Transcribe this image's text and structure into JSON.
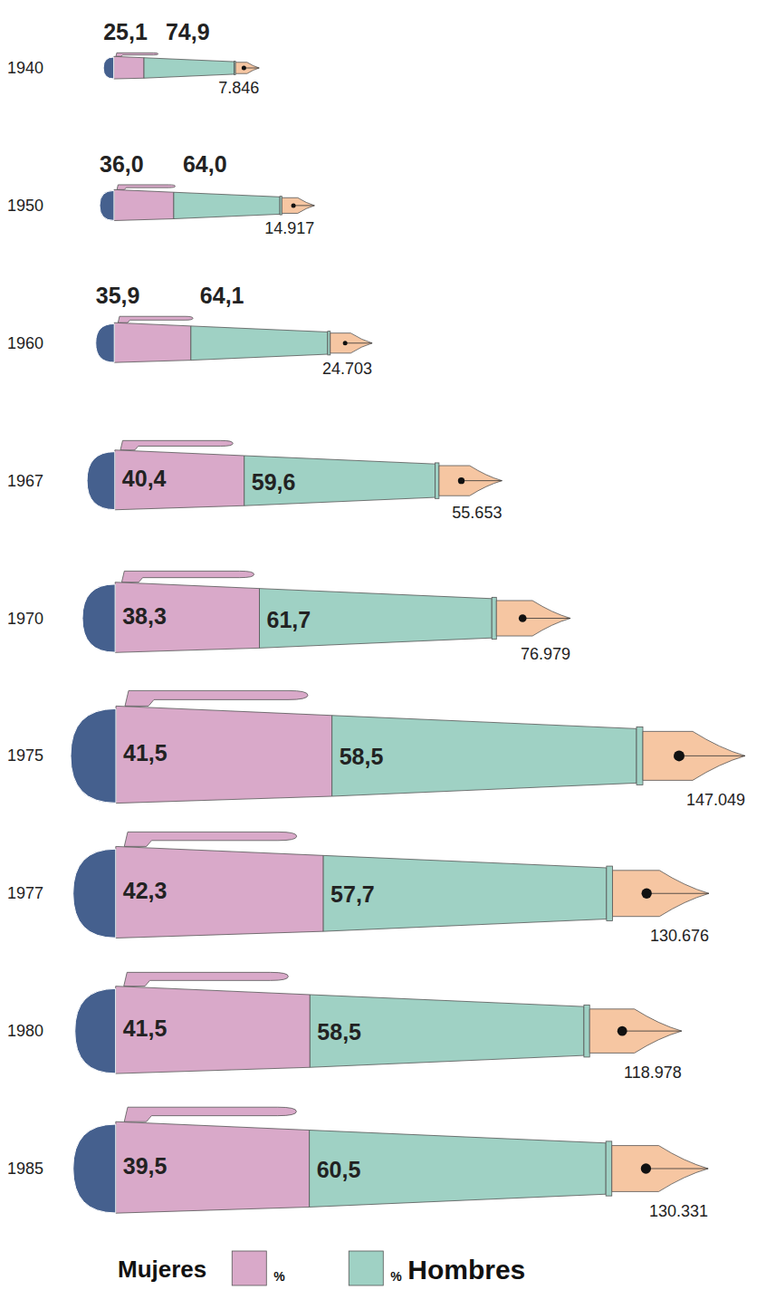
{
  "chart_data": {
    "type": "pictogram",
    "orientation": "horizontal",
    "stacked": true,
    "data_labels": true,
    "tick_labels": false,
    "legend": "bottom",
    "categories": [
      "1940",
      "1950",
      "1960",
      "1967",
      "1970",
      "1975",
      "1977",
      "1980",
      "1985"
    ],
    "series": [
      {
        "name": "Mujeres",
        "color": "#d9a9c9",
        "values": [
          25.1,
          36.0,
          35.9,
          40.4,
          38.3,
          41.5,
          42.3,
          41.5,
          39.5
        ],
        "value_labels": [
          "25,1",
          "36,0",
          "35,9",
          "40,4",
          "38,3",
          "41,5",
          "42,3",
          "41,5",
          "39,5"
        ]
      },
      {
        "name": "Hombres",
        "color": "#9fd1c4",
        "values": [
          74.9,
          64.0,
          64.1,
          59.6,
          61.7,
          58.5,
          57.7,
          58.5,
          60.5
        ],
        "value_labels": [
          "74,9",
          "64,0",
          "64,1",
          "59,6",
          "61,7",
          "58,5",
          "57,7",
          "58,5",
          "60,5"
        ]
      }
    ],
    "totals": [
      7846,
      14917,
      24703,
      55653,
      76979,
      147049,
      130676,
      118978,
      130331
    ],
    "total_labels": [
      "7.846",
      "14.917",
      "24.703",
      "55.653",
      "76.979",
      "147.049",
      "130.676",
      "118.978",
      "130.331"
    ],
    "unit_label": "%"
  }
}
